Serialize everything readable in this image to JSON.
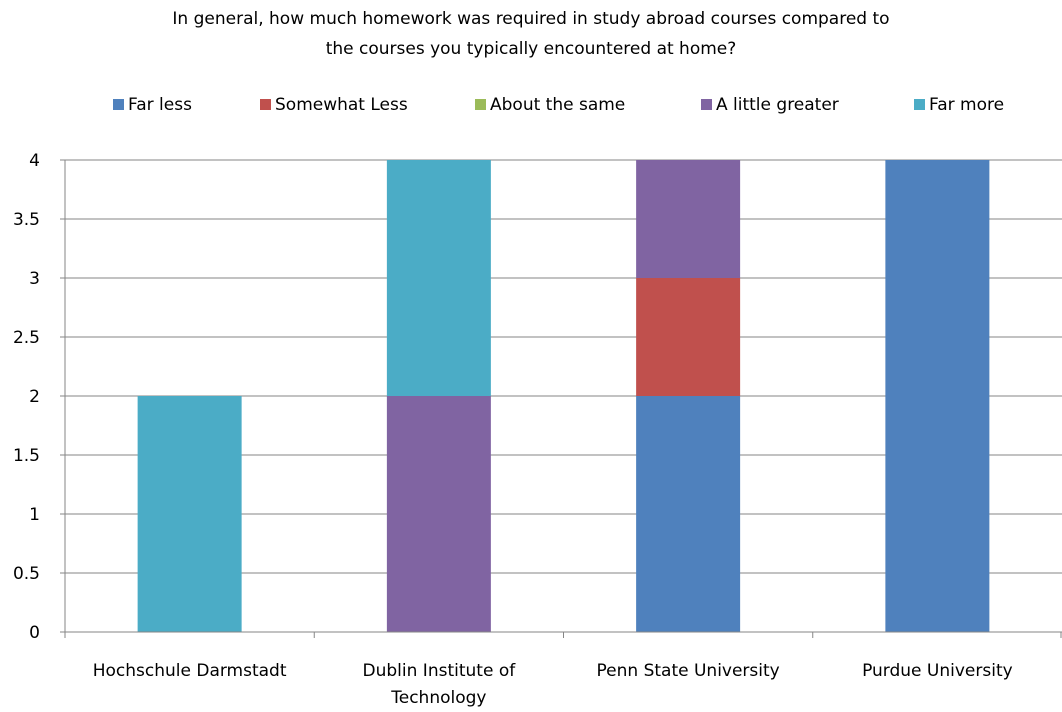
{
  "chart_data": {
    "type": "bar",
    "stacked": true,
    "title": "In general, how much homework was required in study abroad courses compared to the courses you typically encountered at home?",
    "title_lines": [
      "In general, how much homework was required in study abroad courses compared to",
      "the courses you typically encountered at home?"
    ],
    "categories": [
      "Hochschule Darmstadt",
      "Dublin Institute of Technology",
      "Penn State University",
      "Purdue University"
    ],
    "category_lines": [
      [
        "Hochschule Darmstadt"
      ],
      [
        "Dublin Institute of",
        "Technology"
      ],
      [
        "Penn State University"
      ],
      [
        "Purdue University"
      ]
    ],
    "series": [
      {
        "name": "Far less",
        "color": "#4F81BD",
        "values": [
          0,
          0,
          2,
          4
        ]
      },
      {
        "name": "Somewhat Less",
        "color": "#C0504D",
        "values": [
          0,
          0,
          1,
          0
        ]
      },
      {
        "name": "About the same",
        "color": "#9BBB59",
        "values": [
          0,
          0,
          0,
          0
        ]
      },
      {
        "name": "A little greater",
        "color": "#8064A2",
        "values": [
          0,
          2,
          1,
          0
        ]
      },
      {
        "name": "Far more",
        "color": "#4BACC6",
        "values": [
          2,
          2,
          0,
          0
        ]
      }
    ],
    "xlabel": "",
    "ylabel": "",
    "ylim": [
      0,
      4
    ],
    "yticks": [
      0,
      0.5,
      1,
      1.5,
      2,
      2.5,
      3,
      3.5,
      4
    ],
    "ytick_labels": [
      "0",
      "0.5",
      "1",
      "1.5",
      "2",
      "2.5",
      "3",
      "3.5",
      "4"
    ],
    "grid": true,
    "legend_position": "top"
  }
}
